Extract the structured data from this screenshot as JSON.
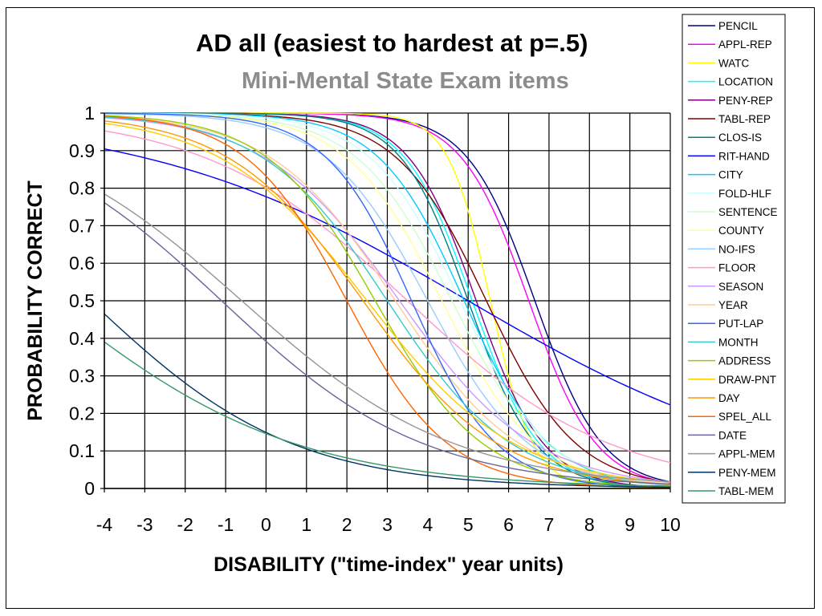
{
  "chart_data": {
    "type": "line",
    "title": "AD all (easiest to hardest at p=.5)",
    "subtitle": "Mini-Mental State Exam items",
    "xlabel": "DISABILITY (\"time-index\" year units)",
    "ylabel": "PROBABILITY CORRECT",
    "xlim": [
      -4,
      10
    ],
    "ylim": [
      0,
      1
    ],
    "xticks": [
      "-4",
      "-3",
      "-2",
      "-1",
      "0",
      "1",
      "2",
      "3",
      "4",
      "5",
      "6",
      "7",
      "8",
      "9",
      "10"
    ],
    "yticks": [
      "0",
      "0.1",
      "0.2",
      "0.3",
      "0.4",
      "0.5",
      "0.6",
      "0.7",
      "0.8",
      "0.9",
      "1"
    ],
    "grid": true,
    "legend_position": "right",
    "series": [
      {
        "name": "PENCIL",
        "color": "#000080",
        "p50": 6.65,
        "slope": 1.2
      },
      {
        "name": "APPL-REP",
        "color": "#ff00ff",
        "p50": 6.5,
        "slope": 1.2
      },
      {
        "name": "WATC",
        "color": "#ffff00",
        "p50": 5.55,
        "slope": 1.9
      },
      {
        "name": "LOCATION",
        "color": "#00ffff",
        "p50": 5.1,
        "slope": 1.2
      },
      {
        "name": "PENY-REP",
        "color": "#800080",
        "p50": 5.2,
        "slope": 1.2
      },
      {
        "name": "TABL-REP",
        "color": "#800000",
        "p50": 5.45,
        "slope": 0.9
      },
      {
        "name": "CLOS-IS",
        "color": "#008080",
        "p50": 5.0,
        "slope": 1.2
      },
      {
        "name": "RIT-HAND",
        "color": "#0000ff",
        "p50": 5.0,
        "slope": 0.25
      },
      {
        "name": "CITY",
        "color": "#00ccff",
        "p50": 4.9,
        "slope": 0.95
      },
      {
        "name": "FOLD-HLF",
        "color": "#ccffff",
        "p50": 4.8,
        "slope": 0.9
      },
      {
        "name": "SENTENCE",
        "color": "#ccffcc",
        "p50": 4.6,
        "slope": 0.85
      },
      {
        "name": "COUNTY",
        "color": "#ffff99",
        "p50": 4.35,
        "slope": 0.85
      },
      {
        "name": "NO-IFS",
        "color": "#99ccff",
        "p50": 4.0,
        "slope": 0.8
      },
      {
        "name": "FLOOR",
        "color": "#ff99cc",
        "p50": 3.5,
        "slope": 0.4
      },
      {
        "name": "SEASON",
        "color": "#cc99ff",
        "p50": 3.3,
        "slope": 0.6
      },
      {
        "name": "YEAR",
        "color": "#ffcc99",
        "p50": 3.2,
        "slope": 0.65
      },
      {
        "name": "PUT-LAP",
        "color": "#3366ff",
        "p50": 3.6,
        "slope": 0.95
      },
      {
        "name": "MONTH",
        "color": "#33cccc",
        "p50": 3.0,
        "slope": 0.65
      },
      {
        "name": "ADDRESS",
        "color": "#99cc00",
        "p50": 2.7,
        "slope": 0.75
      },
      {
        "name": "DRAW-PNT",
        "color": "#ffcc00",
        "p50": 2.5,
        "slope": 0.55
      },
      {
        "name": "DAY",
        "color": "#ff9900",
        "p50": 2.4,
        "slope": 0.6
      },
      {
        "name": "SPEL_ALL",
        "color": "#ff6600",
        "p50": 2.0,
        "slope": 0.8
      },
      {
        "name": "DATE",
        "color": "#666699",
        "p50": -1.1,
        "slope": 0.4
      },
      {
        "name": "APPL-MEM",
        "color": "#969696",
        "p50": -0.6,
        "slope": 0.38
      },
      {
        "name": "PENY-MEM",
        "color": "#003366",
        "p50": -4.35,
        "slope": 0.4
      },
      {
        "name": "TABL-MEM",
        "color": "#339966",
        "p50": -5.35,
        "slope": 0.33
      }
    ]
  }
}
